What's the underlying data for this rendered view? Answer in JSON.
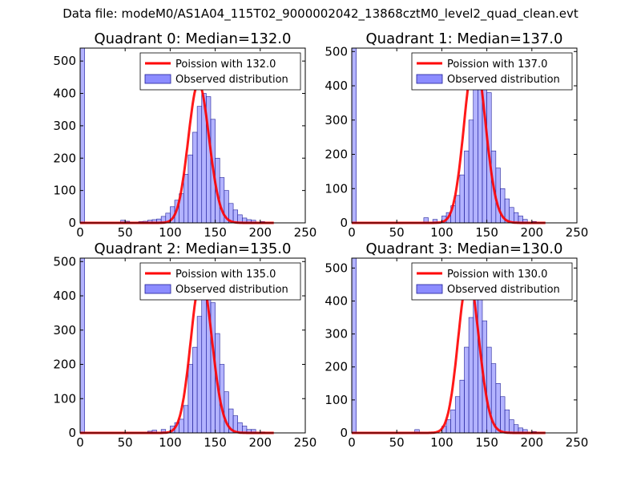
{
  "figure": {
    "suptitle": "Data file: modeM0/AS1A04_115T02_9000002042_13868cztM0_level2_quad_clean.evt"
  },
  "colors": {
    "poisson": "#ff0000",
    "bar_fill": "#8080ff",
    "bar_edge": "#1f1f99"
  },
  "chart_data": [
    {
      "type": "bar",
      "title": "Quadrant 0: Median=132.0",
      "median": 132,
      "xlim": [
        0,
        250
      ],
      "ylim": [
        0,
        540
      ],
      "xticks": [
        0,
        50,
        100,
        150,
        200,
        250
      ],
      "yticks": [
        0,
        100,
        200,
        300,
        400,
        500
      ],
      "bin_width": 5,
      "bins": [
        [
          0,
          540
        ],
        [
          45,
          8
        ],
        [
          50,
          5
        ],
        [
          65,
          4
        ],
        [
          70,
          5
        ],
        [
          75,
          8
        ],
        [
          80,
          10
        ],
        [
          85,
          12
        ],
        [
          90,
          20
        ],
        [
          95,
          30
        ],
        [
          100,
          50
        ],
        [
          105,
          70
        ],
        [
          110,
          90
        ],
        [
          115,
          150
        ],
        [
          120,
          210
        ],
        [
          125,
          280
        ],
        [
          130,
          360
        ],
        [
          135,
          400
        ],
        [
          140,
          390
        ],
        [
          145,
          320
        ],
        [
          150,
          200
        ],
        [
          155,
          140
        ],
        [
          160,
          100
        ],
        [
          165,
          60
        ],
        [
          170,
          40
        ],
        [
          175,
          25
        ],
        [
          180,
          15
        ],
        [
          185,
          10
        ],
        [
          190,
          8
        ],
        [
          200,
          4
        ]
      ],
      "legend": {
        "poisson_label": "Poission with 132.0",
        "observed_label": "Observed distribution",
        "location": "top-right"
      }
    },
    {
      "type": "bar",
      "title": "Quadrant 1: Median=137.0",
      "median": 137,
      "xlim": [
        0,
        250
      ],
      "ylim": [
        0,
        510
      ],
      "xticks": [
        0,
        50,
        100,
        150,
        200,
        250
      ],
      "yticks": [
        0,
        100,
        200,
        300,
        400,
        500
      ],
      "bin_width": 5,
      "bins": [
        [
          0,
          510
        ],
        [
          80,
          15
        ],
        [
          90,
          10
        ],
        [
          100,
          20
        ],
        [
          105,
          30
        ],
        [
          110,
          50
        ],
        [
          115,
          80
        ],
        [
          120,
          140
        ],
        [
          125,
          210
        ],
        [
          130,
          300
        ],
        [
          135,
          420
        ],
        [
          140,
          450
        ],
        [
          145,
          430
        ],
        [
          150,
          380
        ],
        [
          155,
          210
        ],
        [
          160,
          160
        ],
        [
          165,
          100
        ],
        [
          170,
          70
        ],
        [
          175,
          45
        ],
        [
          180,
          30
        ],
        [
          185,
          20
        ],
        [
          190,
          10
        ],
        [
          200,
          4
        ]
      ],
      "legend": {
        "poisson_label": "Poission with 137.0",
        "observed_label": "Observed distribution",
        "location": "top-right"
      }
    },
    {
      "type": "bar",
      "title": "Quadrant 2: Median=135.0",
      "median": 135,
      "xlim": [
        0,
        250
      ],
      "ylim": [
        0,
        510
      ],
      "xticks": [
        0,
        50,
        100,
        150,
        200,
        250
      ],
      "yticks": [
        0,
        100,
        200,
        300,
        400,
        500
      ],
      "bin_width": 5,
      "bins": [
        [
          0,
          510
        ],
        [
          75,
          5
        ],
        [
          80,
          8
        ],
        [
          90,
          10
        ],
        [
          100,
          20
        ],
        [
          105,
          30
        ],
        [
          110,
          40
        ],
        [
          115,
          80
        ],
        [
          120,
          200
        ],
        [
          125,
          250
        ],
        [
          130,
          340
        ],
        [
          135,
          420
        ],
        [
          140,
          400
        ],
        [
          145,
          380
        ],
        [
          150,
          290
        ],
        [
          155,
          200
        ],
        [
          160,
          120
        ],
        [
          165,
          70
        ],
        [
          170,
          50
        ],
        [
          175,
          30
        ],
        [
          180,
          20
        ],
        [
          185,
          10
        ],
        [
          190,
          10
        ],
        [
          200,
          3
        ]
      ],
      "legend": {
        "poisson_label": "Poission with 135.0",
        "observed_label": "Observed distribution",
        "location": "top-right"
      }
    },
    {
      "type": "bar",
      "title": "Quadrant 3: Median=130.0",
      "median": 130,
      "xlim": [
        0,
        250
      ],
      "ylim": [
        0,
        530
      ],
      "xticks": [
        0,
        50,
        100,
        150,
        200,
        250
      ],
      "yticks": [
        0,
        100,
        200,
        300,
        400,
        500
      ],
      "bin_width": 5,
      "bins": [
        [
          0,
          530
        ],
        [
          70,
          10
        ],
        [
          100,
          20
        ],
        [
          105,
          40
        ],
        [
          110,
          70
        ],
        [
          115,
          110
        ],
        [
          120,
          160
        ],
        [
          125,
          260
        ],
        [
          130,
          350
        ],
        [
          135,
          440
        ],
        [
          140,
          420
        ],
        [
          145,
          340
        ],
        [
          150,
          260
        ],
        [
          155,
          210
        ],
        [
          160,
          150
        ],
        [
          165,
          110
        ],
        [
          170,
          70
        ],
        [
          175,
          40
        ],
        [
          180,
          25
        ],
        [
          185,
          15
        ],
        [
          190,
          10
        ],
        [
          200,
          4
        ]
      ],
      "legend": {
        "poisson_label": "Poission with 130.0",
        "observed_label": "Observed distribution",
        "location": "top-right"
      }
    }
  ]
}
